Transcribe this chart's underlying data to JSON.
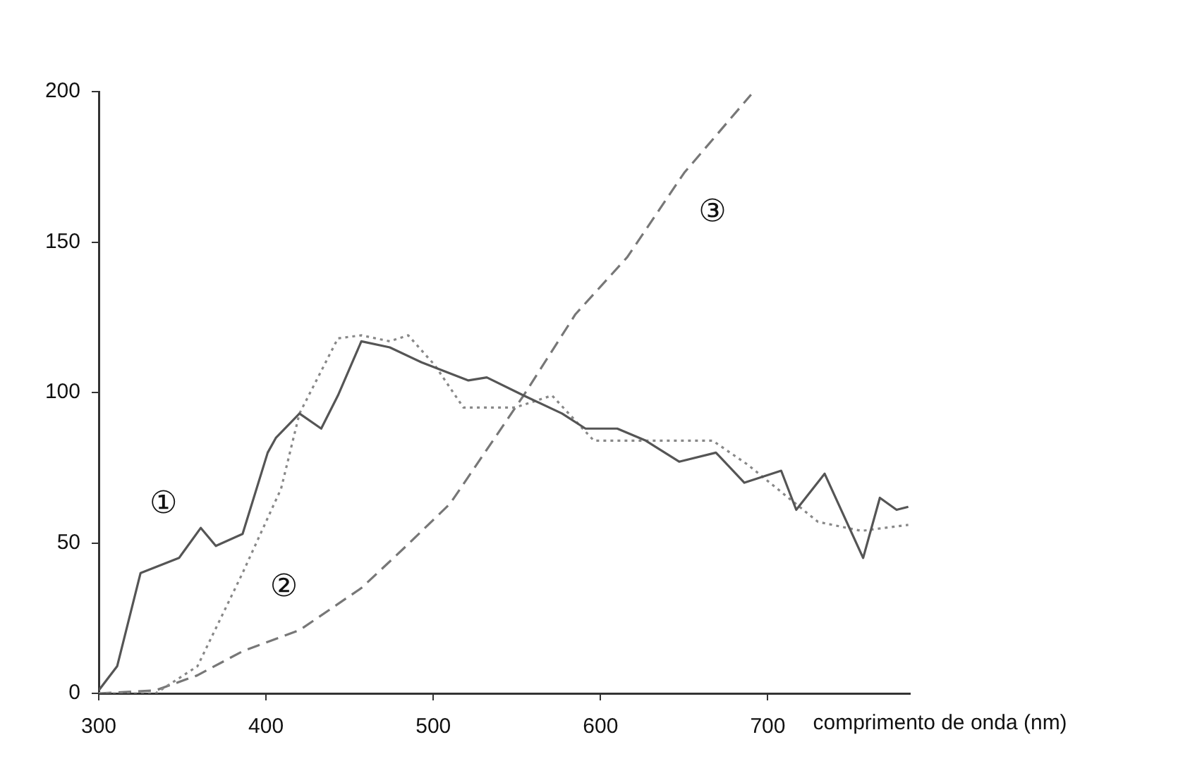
{
  "chart_data": {
    "type": "line",
    "xlabel": "comprimento de onda (nm)",
    "xlim": [
      300,
      785
    ],
    "xticks": [
      300,
      400,
      500,
      600,
      700
    ],
    "ylim": [
      0,
      200
    ],
    "yticks": [
      0,
      50,
      100,
      150,
      200
    ],
    "grid": false,
    "legend": false,
    "marker": "none",
    "series": [
      {
        "name": "①",
        "color": "#555555",
        "line_style": "solid",
        "x": [
          300,
          311,
          325,
          348,
          361,
          370,
          386,
          401,
          406,
          420,
          433,
          443,
          457,
          474,
          493,
          521,
          532,
          554,
          577,
          591,
          610,
          627,
          647,
          669,
          686,
          708,
          717,
          734,
          757,
          767,
          777,
          784
        ],
        "values": [
          1,
          9,
          40,
          45,
          55,
          49,
          53,
          80,
          85,
          93,
          88,
          99,
          117,
          115,
          110,
          104,
          105,
          99,
          93,
          88,
          88,
          84,
          77,
          80,
          70,
          74,
          61,
          73,
          45,
          65,
          61,
          62
        ]
      },
      {
        "name": "②",
        "color": "#888888",
        "line_style": "dotted",
        "x": [
          300,
          334,
          359,
          386,
          409,
          420,
          443,
          457,
          474,
          485,
          501,
          518,
          549,
          571,
          596,
          667,
          688,
          730,
          756,
          784
        ],
        "values": [
          0,
          0,
          9,
          40,
          68,
          93,
          118,
          119,
          117,
          119,
          109,
          95,
          95,
          99,
          84,
          84,
          76,
          57,
          54,
          56
        ]
      },
      {
        "name": "③",
        "color": "#777777",
        "line_style": "dashed",
        "x": [
          300,
          334,
          359,
          386,
          420,
          457,
          482,
          510,
          554,
          585,
          616,
          650,
          690
        ],
        "values": [
          0,
          1,
          6,
          14,
          21,
          35,
          48,
          63,
          99,
          126,
          145,
          173,
          199
        ]
      }
    ]
  }
}
